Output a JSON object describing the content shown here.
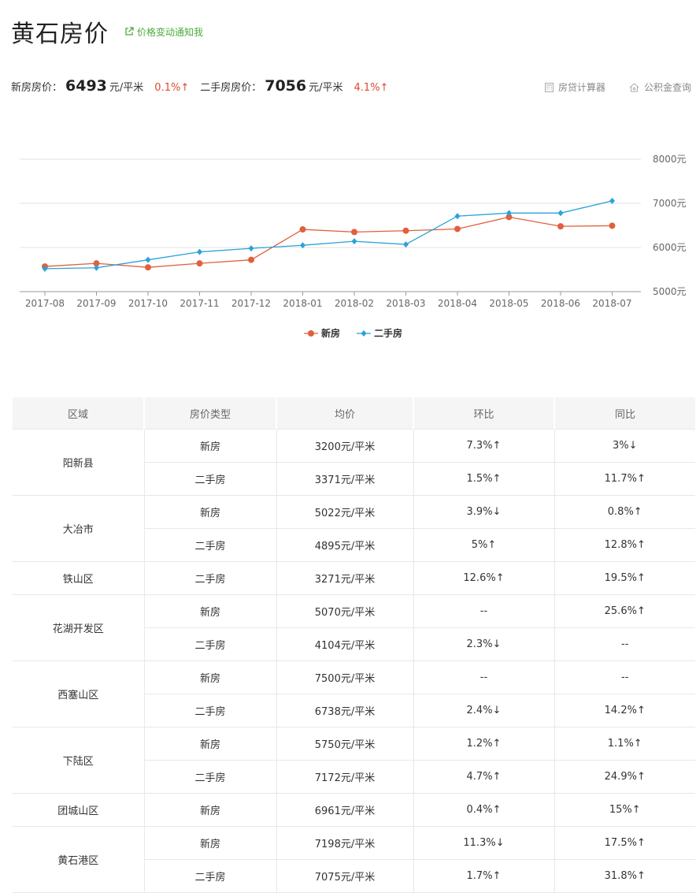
{
  "header": {
    "title": "黄石房价",
    "notify_label": "价格变动通知我"
  },
  "summary": {
    "new_label": "新房房价：",
    "new_price": "6493",
    "new_unit": "元/平米",
    "new_change": "0.1%↑",
    "second_label": "二手房房价：",
    "second_price": "7056",
    "second_unit": "元/平米",
    "second_change": "4.1%↑"
  },
  "tools": {
    "loan_calc": "房贷计算器",
    "fund_query": "公积金查询"
  },
  "colors": {
    "new_series": "#e0603d",
    "second_series": "#2aa3d8",
    "up": "#e1492b",
    "down": "#4cab3c",
    "accent_green": "#4cab3c"
  },
  "chart_data": {
    "type": "line",
    "categories": [
      "2017-08",
      "2017-09",
      "2017-10",
      "2017-11",
      "2017-12",
      "2018-01",
      "2018-02",
      "2018-03",
      "2018-04",
      "2018-05",
      "2018-06",
      "2018-07"
    ],
    "series": [
      {
        "name": "新房",
        "values": [
          5570,
          5640,
          5550,
          5640,
          5720,
          6410,
          6350,
          6380,
          6420,
          6690,
          6480,
          6493
        ]
      },
      {
        "name": "二手房",
        "values": [
          5520,
          5540,
          5720,
          5900,
          5980,
          6050,
          6140,
          6070,
          6710,
          6780,
          6780,
          7056
        ]
      }
    ],
    "y_ticks": [
      "5000元",
      "6000元",
      "7000元",
      "8000元"
    ],
    "ylim": [
      5000,
      8000
    ],
    "grid": true,
    "legend": "bottom-center"
  },
  "table": {
    "headers": [
      "区域",
      "房价类型",
      "均价",
      "环比",
      "同比"
    ],
    "regions": [
      {
        "name": "阳新县",
        "rows": [
          {
            "type": "新房",
            "price": "3200元/平米",
            "mom": "7.3%↑",
            "mom_dir": "up",
            "yoy": "3%↓",
            "yoy_dir": "down"
          },
          {
            "type": "二手房",
            "price": "3371元/平米",
            "mom": "1.5%↑",
            "mom_dir": "up",
            "yoy": "11.7%↑",
            "yoy_dir": "up"
          }
        ]
      },
      {
        "name": "大冶市",
        "rows": [
          {
            "type": "新房",
            "price": "5022元/平米",
            "mom": "3.9%↓",
            "mom_dir": "down",
            "yoy": "0.8%↑",
            "yoy_dir": "up"
          },
          {
            "type": "二手房",
            "price": "4895元/平米",
            "mom": "5%↑",
            "mom_dir": "up",
            "yoy": "12.8%↑",
            "yoy_dir": "up"
          }
        ]
      },
      {
        "name": "铁山区",
        "rows": [
          {
            "type": "二手房",
            "price": "3271元/平米",
            "mom": "12.6%↑",
            "mom_dir": "up",
            "yoy": "19.5%↑",
            "yoy_dir": "up"
          }
        ]
      },
      {
        "name": "花湖开发区",
        "rows": [
          {
            "type": "新房",
            "price": "5070元/平米",
            "mom": "--",
            "mom_dir": "flat",
            "yoy": "25.6%↑",
            "yoy_dir": "up"
          },
          {
            "type": "二手房",
            "price": "4104元/平米",
            "mom": "2.3%↓",
            "mom_dir": "down",
            "yoy": "--",
            "yoy_dir": "flat"
          }
        ]
      },
      {
        "name": "西塞山区",
        "rows": [
          {
            "type": "新房",
            "price": "7500元/平米",
            "mom": "--",
            "mom_dir": "flat",
            "yoy": "--",
            "yoy_dir": "flat"
          },
          {
            "type": "二手房",
            "price": "6738元/平米",
            "mom": "2.4%↓",
            "mom_dir": "down",
            "yoy": "14.2%↑",
            "yoy_dir": "up"
          }
        ]
      },
      {
        "name": "下陆区",
        "rows": [
          {
            "type": "新房",
            "price": "5750元/平米",
            "mom": "1.2%↑",
            "mom_dir": "up",
            "yoy": "1.1%↑",
            "yoy_dir": "up"
          },
          {
            "type": "二手房",
            "price": "7172元/平米",
            "mom": "4.7%↑",
            "mom_dir": "up",
            "yoy": "24.9%↑",
            "yoy_dir": "up"
          }
        ]
      },
      {
        "name": "团城山区",
        "rows": [
          {
            "type": "新房",
            "price": "6961元/平米",
            "mom": "0.4%↑",
            "mom_dir": "up",
            "yoy": "15%↑",
            "yoy_dir": "up"
          }
        ]
      },
      {
        "name": "黄石港区",
        "rows": [
          {
            "type": "新房",
            "price": "7198元/平米",
            "mom": "11.3%↓",
            "mom_dir": "down",
            "yoy": "17.5%↑",
            "yoy_dir": "up"
          },
          {
            "type": "二手房",
            "price": "7075元/平米",
            "mom": "1.7%↑",
            "mom_dir": "up",
            "yoy": "31.8%↑",
            "yoy_dir": "up"
          }
        ]
      }
    ]
  }
}
